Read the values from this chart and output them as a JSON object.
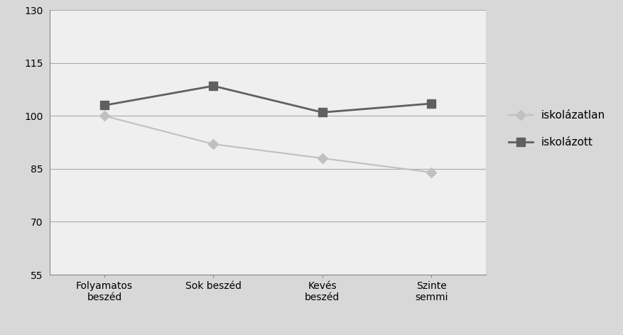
{
  "categories": [
    "Folyamatos\nbeszéd",
    "Sok beszéd",
    "Kevés\nbeszéd",
    "Szinte\nsemmi"
  ],
  "series": [
    {
      "label": "iskolázatlan",
      "values": [
        100.0,
        92.0,
        88.0,
        84.0
      ],
      "color": "#c0c0c0",
      "marker": "D",
      "markersize": 7,
      "linewidth": 1.5
    },
    {
      "label": "iskolázott",
      "values": [
        103.0,
        108.5,
        101.0,
        103.5
      ],
      "color": "#606060",
      "marker": "s",
      "markersize": 9,
      "linewidth": 2.0
    }
  ],
  "ylim": [
    55,
    130
  ],
  "yticks": [
    55,
    70,
    85,
    100,
    115,
    130
  ],
  "outer_background": "#d8d8d8",
  "plot_background": "#efefef",
  "grid_color": "#aaaaaa",
  "spine_color": "#888888",
  "legend_fontsize": 11,
  "tick_fontsize": 10
}
